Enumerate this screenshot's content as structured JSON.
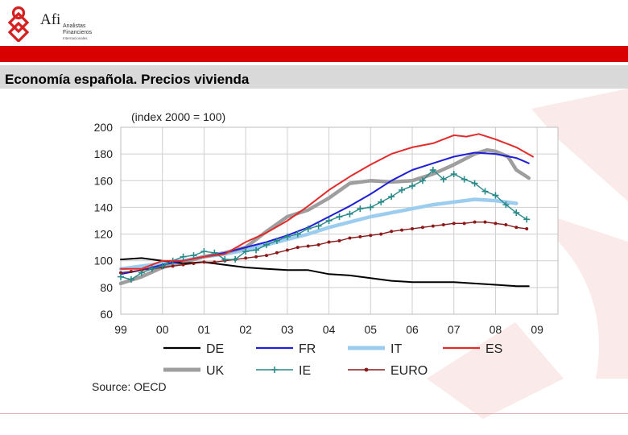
{
  "logo": {
    "name": "Afi",
    "line1": "Analistas",
    "line2": "Financieros",
    "line3": "Internacionales"
  },
  "page": {
    "title": "Economía española. Precios vivienda"
  },
  "colors": {
    "brand_red": "#d90000",
    "band_grey": "#d9d9d9"
  },
  "chart_data": {
    "type": "line",
    "title": "(index 2000 = 100)",
    "xlabel": "",
    "ylabel": "",
    "xlim": [
      1999,
      2009.5
    ],
    "ylim": [
      60,
      200
    ],
    "yticks": [
      60,
      80,
      100,
      120,
      140,
      160,
      180,
      200
    ],
    "x_tick_labels": [
      "99",
      "00",
      "01",
      "02",
      "03",
      "04",
      "05",
      "06",
      "07",
      "08",
      "09"
    ],
    "x_tick_values": [
      1999,
      2000,
      2001,
      2002,
      2003,
      2004,
      2005,
      2006,
      2007,
      2008,
      2009
    ],
    "grid": true,
    "legend_position": "bottom",
    "source": "Source: OECD",
    "series": [
      {
        "name": "DE",
        "color": "#000000",
        "style": "line",
        "x": [
          1999.0,
          1999.5,
          2000.0,
          2000.5,
          2001.0,
          2001.5,
          2002.0,
          2002.5,
          2003.0,
          2003.5,
          2004.0,
          2004.5,
          2005.0,
          2005.5,
          2006.0,
          2006.5,
          2007.0,
          2007.5,
          2008.0,
          2008.5,
          2008.8
        ],
        "y": [
          101,
          102,
          100,
          98,
          99,
          97,
          95,
          94,
          93,
          93,
          90,
          89,
          87,
          85,
          84,
          84,
          84,
          83,
          82,
          81,
          81
        ]
      },
      {
        "name": "FR",
        "color": "#1f1fd6",
        "style": "line",
        "x": [
          1999.0,
          1999.5,
          2000.0,
          2000.5,
          2001.0,
          2001.5,
          2002.0,
          2002.5,
          2003.0,
          2003.5,
          2004.0,
          2004.5,
          2005.0,
          2005.5,
          2006.0,
          2006.5,
          2007.0,
          2007.5,
          2008.0,
          2008.5,
          2008.8
        ],
        "y": [
          90,
          93,
          97,
          100,
          103,
          106,
          110,
          114,
          119,
          125,
          133,
          141,
          150,
          160,
          168,
          173,
          178,
          181,
          180,
          177,
          173
        ]
      },
      {
        "name": "IT",
        "color": "#9ccdef",
        "style": "thick",
        "x": [
          1999.0,
          1999.5,
          2000.0,
          2000.5,
          2001.0,
          2001.5,
          2002.0,
          2002.5,
          2003.0,
          2003.5,
          2004.0,
          2004.5,
          2005.0,
          2005.5,
          2006.0,
          2006.5,
          2007.0,
          2007.5,
          2008.0,
          2008.5
        ],
        "y": [
          94,
          96,
          98,
          100,
          103,
          105,
          108,
          112,
          116,
          120,
          125,
          129,
          133,
          136,
          139,
          142,
          144,
          146,
          145,
          143
        ]
      },
      {
        "name": "ES",
        "color": "#e32b2b",
        "style": "line",
        "x": [
          1999.0,
          1999.5,
          2000.0,
          2000.5,
          2001.0,
          2001.5,
          2002.0,
          2002.5,
          2003.0,
          2003.5,
          2004.0,
          2004.5,
          2005.0,
          2005.5,
          2006.0,
          2006.5,
          2007.0,
          2007.3,
          2007.6,
          2008.0,
          2008.5,
          2008.9
        ],
        "y": [
          94,
          94,
          100,
          100,
          103,
          105,
          114,
          121,
          130,
          141,
          153,
          163,
          172,
          180,
          185,
          188,
          194,
          193,
          195,
          191,
          185,
          178
        ]
      },
      {
        "name": "UK",
        "color": "#9e9e9e",
        "style": "thick",
        "x": [
          1999.0,
          1999.5,
          2000.0,
          2000.5,
          2001.0,
          2001.5,
          2002.0,
          2002.5,
          2003.0,
          2003.5,
          2004.0,
          2004.5,
          2005.0,
          2005.5,
          2006.0,
          2006.5,
          2007.0,
          2007.5,
          2007.8,
          2008.0,
          2008.3,
          2008.5,
          2008.8
        ],
        "y": [
          83,
          88,
          95,
          99,
          103,
          106,
          110,
          122,
          133,
          138,
          147,
          158,
          160,
          159,
          160,
          165,
          172,
          180,
          183,
          182,
          178,
          168,
          162
        ]
      },
      {
        "name": "IE",
        "color": "#2a8a8a",
        "style": "markers-plus",
        "x": [
          1999.0,
          1999.25,
          1999.5,
          1999.75,
          2000.0,
          2000.25,
          2000.5,
          2000.75,
          2001.0,
          2001.25,
          2001.5,
          2001.75,
          2002.0,
          2002.25,
          2002.5,
          2002.75,
          2003.0,
          2003.25,
          2003.5,
          2003.75,
          2004.0,
          2004.25,
          2004.5,
          2004.75,
          2005.0,
          2005.25,
          2005.5,
          2005.75,
          2006.0,
          2006.25,
          2006.5,
          2006.75,
          2007.0,
          2007.25,
          2007.5,
          2007.75,
          2008.0,
          2008.25,
          2008.5,
          2008.75
        ],
        "y": [
          88,
          86,
          91,
          94,
          96,
          100,
          103,
          104,
          107,
          106,
          101,
          101,
          107,
          108,
          112,
          115,
          118,
          120,
          124,
          126,
          130,
          133,
          135,
          139,
          140,
          144,
          148,
          153,
          156,
          160,
          168,
          161,
          165,
          161,
          158,
          152,
          149,
          142,
          136,
          131
        ]
      },
      {
        "name": "EURO",
        "color": "#8b1a1a",
        "style": "markers-dot",
        "x": [
          1999.0,
          1999.25,
          1999.5,
          1999.75,
          2000.0,
          2000.25,
          2000.5,
          2000.75,
          2001.0,
          2001.25,
          2001.5,
          2001.75,
          2002.0,
          2002.25,
          2002.5,
          2002.75,
          2003.0,
          2003.25,
          2003.5,
          2003.75,
          2004.0,
          2004.25,
          2004.5,
          2004.75,
          2005.0,
          2005.25,
          2005.5,
          2005.75,
          2006.0,
          2006.25,
          2006.5,
          2006.75,
          2007.0,
          2007.25,
          2007.5,
          2007.75,
          2008.0,
          2008.25,
          2008.5,
          2008.75
        ],
        "y": [
          91,
          92,
          93,
          94,
          95,
          96,
          97,
          98,
          99,
          99,
          100,
          101,
          102,
          103,
          104,
          106,
          108,
          110,
          111,
          112,
          114,
          115,
          117,
          118,
          119,
          120,
          122,
          123,
          124,
          125,
          126,
          127,
          128,
          128,
          129,
          129,
          128,
          127,
          125,
          124
        ]
      }
    ]
  }
}
